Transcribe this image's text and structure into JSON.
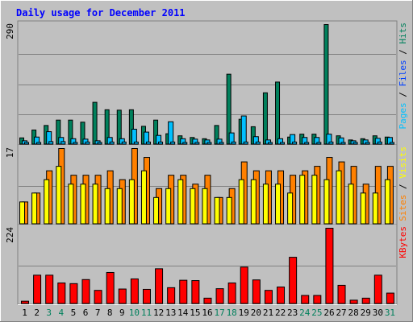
{
  "chart_data": [
    {
      "type": "bar",
      "title": "Daily usage for December 2011",
      "categories": [
        "1",
        "2",
        "3",
        "4",
        "5",
        "6",
        "7",
        "8",
        "9",
        "10",
        "11",
        "12",
        "13",
        "14",
        "15",
        "16",
        "17",
        "18",
        "19",
        "20",
        "21",
        "22",
        "23",
        "24",
        "25",
        "26",
        "27",
        "28",
        "29",
        "30",
        "31"
      ],
      "weekend_days": [
        "3",
        "4",
        "10",
        "11",
        "17",
        "18",
        "24",
        "25",
        "31"
      ],
      "ymax_label": "290",
      "ylim": [
        0,
        290
      ],
      "side_label_parts": [
        "Pages",
        "Files",
        "Hits"
      ],
      "series": [
        {
          "name": "Hits",
          "color": "#00805c",
          "values": [
            16,
            35,
            46,
            59,
            59,
            54,
            102,
            84,
            83,
            84,
            44,
            59,
            26,
            21,
            17,
            14,
            46,
            170,
            61,
            43,
            125,
            151,
            18,
            25,
            25,
            290,
            21,
            11,
            14,
            21,
            18
          ]
        },
        {
          "name": "Files",
          "color": "#00c0ff",
          "values": [
            9,
            18,
            31,
            17,
            14,
            13,
            9,
            17,
            14,
            37,
            30,
            22,
            55,
            14,
            13,
            11,
            13,
            28,
            69,
            19,
            11,
            14,
            24,
            17,
            17,
            25,
            16,
            9,
            11,
            15,
            17
          ]
        },
        {
          "name": "Pages",
          "color": "#00c0ff",
          "values": [
            5,
            5,
            7,
            7,
            5,
            6,
            5,
            6,
            6,
            6,
            6,
            6,
            6,
            5,
            5,
            5,
            5,
            6,
            6,
            6,
            5,
            5,
            6,
            5,
            5,
            6,
            5,
            5,
            5,
            6,
            5
          ]
        }
      ]
    },
    {
      "type": "bar",
      "categories": [
        "1",
        "2",
        "3",
        "4",
        "5",
        "6",
        "7",
        "8",
        "9",
        "10",
        "11",
        "12",
        "13",
        "14",
        "15",
        "16",
        "17",
        "18",
        "19",
        "20",
        "21",
        "22",
        "23",
        "24",
        "25",
        "26",
        "27",
        "28",
        "29",
        "30",
        "31"
      ],
      "ymax_label": "17",
      "ylim": [
        0,
        17
      ],
      "side_label_parts": [
        "Sites",
        "Visits"
      ],
      "series": [
        {
          "name": "Visits",
          "color": "#ff8000",
          "values": [
            5,
            7,
            12,
            17,
            11,
            11,
            11,
            12,
            10,
            17,
            15,
            8,
            11,
            11,
            9,
            11,
            6,
            8,
            14,
            12,
            12,
            12,
            11,
            12,
            13,
            15,
            14,
            13,
            9,
            13,
            13
          ]
        },
        {
          "name": "Sites",
          "color": "#ffff00",
          "values": [
            5,
            7,
            10,
            13,
            9,
            9,
            9,
            8,
            8,
            10,
            12,
            6,
            8,
            10,
            8,
            8,
            6,
            6,
            10,
            10,
            9,
            9,
            7,
            11,
            11,
            10,
            12,
            9,
            7,
            7,
            10
          ]
        }
      ]
    },
    {
      "type": "bar",
      "categories": [
        "1",
        "2",
        "3",
        "4",
        "5",
        "6",
        "7",
        "8",
        "9",
        "10",
        "11",
        "12",
        "13",
        "14",
        "15",
        "16",
        "17",
        "18",
        "19",
        "20",
        "21",
        "22",
        "23",
        "24",
        "25",
        "26",
        "27",
        "28",
        "29",
        "30",
        "31"
      ],
      "ymax_label": "224",
      "ylim": [
        0,
        224
      ],
      "side_label_parts": [
        "KBytes"
      ],
      "series": [
        {
          "name": "KBytes",
          "color": "#ff0000",
          "values": [
            8,
            85,
            85,
            62,
            60,
            72,
            40,
            93,
            44,
            74,
            43,
            104,
            48,
            70,
            69,
            17,
            45,
            62,
            109,
            71,
            40,
            50,
            138,
            25,
            25,
            224,
            55,
            11,
            17,
            85,
            32
          ]
        }
      ]
    }
  ]
}
